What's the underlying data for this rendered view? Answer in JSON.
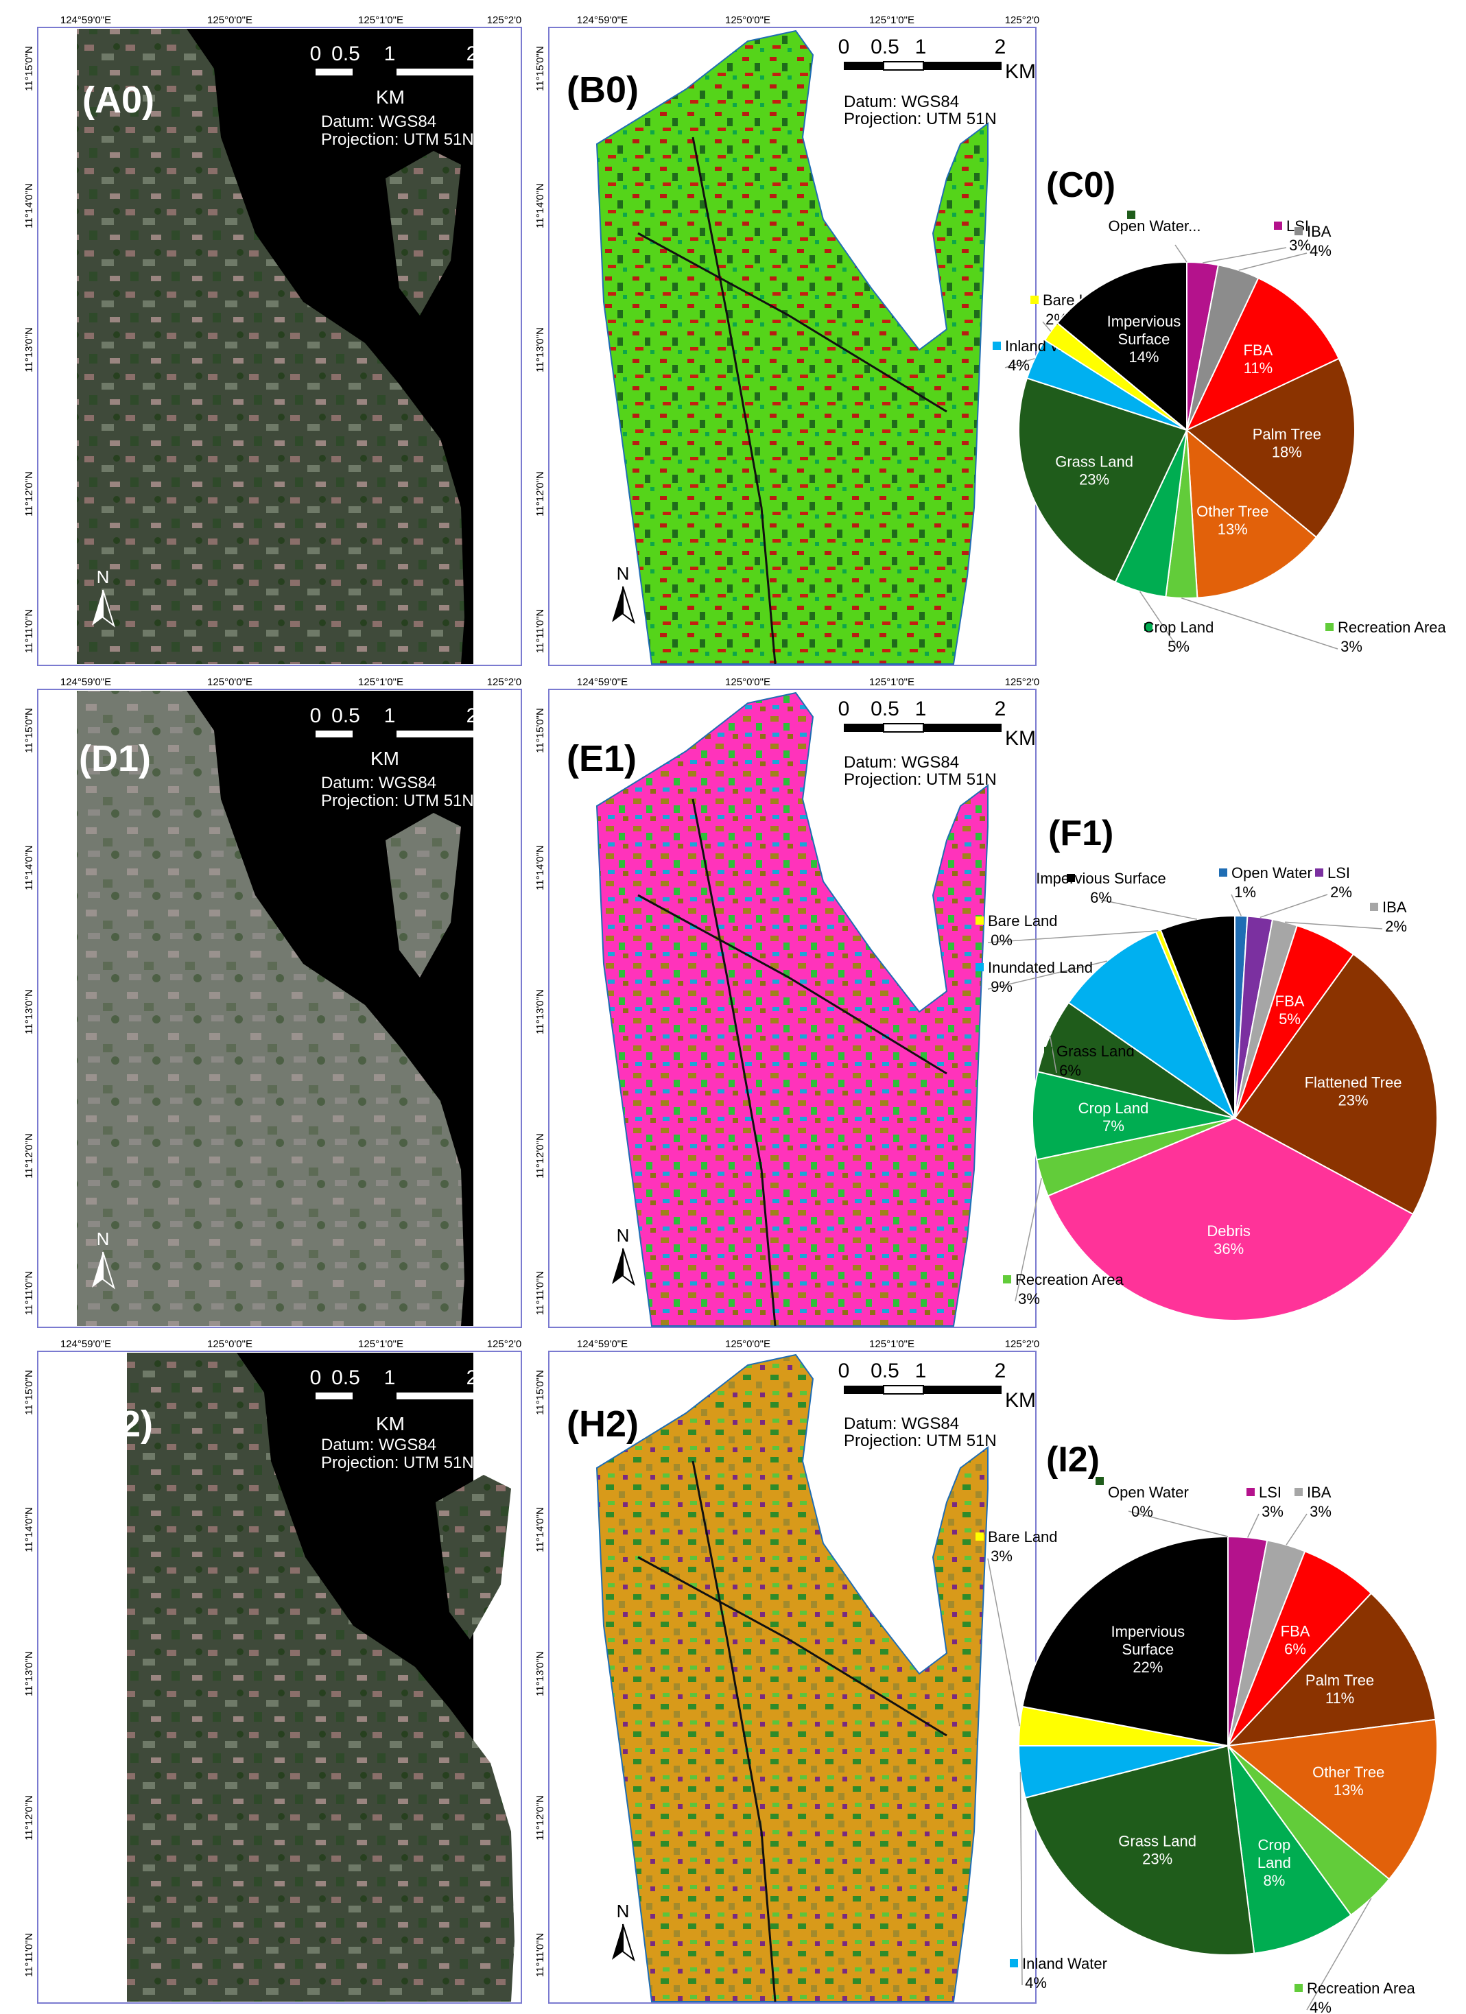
{
  "axes": {
    "lon_labels": [
      "124°59'0\"E",
      "125°0'0\"E",
      "125°1'0\"E",
      "125°2'0"
    ],
    "lat_labels": [
      "11°15'0\"N",
      "11°14'0\"N",
      "11°13'0\"N",
      "11°12'0\"N",
      "11°11'0\"N"
    ]
  },
  "map_info": {
    "scale_numbers": [
      "0",
      "0.5",
      "1",
      "2"
    ],
    "km": "KM",
    "datum": "Datum: WGS84",
    "projection": "Projection: UTM 51N",
    "north": "N"
  },
  "panels": {
    "A0": "(A0)",
    "B0": "(B0)",
    "C0": "(C0)",
    "D1": "(D1)",
    "E1": "(E1)",
    "F1": "(F1)",
    "G2": "(G2)",
    "H2": "(H2)",
    "I2": "(I2)"
  },
  "colors": {
    "lsi": "#b4128c",
    "iba": "#8c8c8c",
    "fba": "#ff0000",
    "palm": "#8b3300",
    "other_tree": "#e2610a",
    "recreation": "#62cc3a",
    "crop": "#00ad51",
    "grass": "#1f5c1b",
    "inland_water": "#00b0f0",
    "bare": "#ffff00",
    "impervious": "#000000",
    "open_water": "#1f6db4",
    "debris": "#ff3399",
    "flattened": "#8b3300",
    "inundated": "#00b0f0"
  },
  "chart_data": [
    {
      "type": "pie",
      "panel": "(C0)",
      "slices": [
        {
          "name": "LSI",
          "value": 3,
          "color": "#b4128c",
          "inside": false
        },
        {
          "name": "IBA",
          "value": 4,
          "color": "#8c8c8c",
          "inside": false
        },
        {
          "name": "FBA",
          "value": 11,
          "color": "#ff0000",
          "inside": true
        },
        {
          "name": "Palm Tree",
          "value": 18,
          "color": "#8b3300",
          "inside": true
        },
        {
          "name": "Other Tree",
          "value": 13,
          "color": "#e2610a",
          "inside": true
        },
        {
          "name": "Recreation Area",
          "value": 3,
          "color": "#62cc3a",
          "inside": false
        },
        {
          "name": "Crop Land",
          "value": 5,
          "color": "#00ad51",
          "inside": false
        },
        {
          "name": "Grass Land",
          "value": 23,
          "color": "#1f5c1b",
          "inside": true
        },
        {
          "name": "Inland Water",
          "value": 4,
          "color": "#00b0f0",
          "inside": false
        },
        {
          "name": "Bare Land",
          "value": 2,
          "color": "#ffff00",
          "inside": false
        },
        {
          "name": "Impervious Surface",
          "value": 14,
          "color": "#000000",
          "inside": true
        },
        {
          "name": "Open Water...",
          "value": 0,
          "color": "#1f5c1b",
          "inside": false
        }
      ],
      "labels": {
        "LSI": "3%",
        "IBA": "4%",
        "FBA": "11%",
        "Palm Tree": "18%",
        "Other Tree": "13%",
        "Recreation Area": "3%",
        "Crop Land": "5%",
        "Grass Land": "23%",
        "Inland Water": "4%",
        "Bare Land": "2%",
        "Impervious Surface": "14%",
        "Open Water...": ""
      }
    },
    {
      "type": "pie",
      "panel": "(F1)",
      "slices": [
        {
          "name": "Open Water",
          "value": 1,
          "color": "#1f6db4",
          "inside": false
        },
        {
          "name": "LSI",
          "value": 2,
          "color": "#7b30a0",
          "inside": false
        },
        {
          "name": "IBA",
          "value": 2,
          "color": "#a6a6a6",
          "inside": false
        },
        {
          "name": "FBA",
          "value": 5,
          "color": "#ff0000",
          "inside": true
        },
        {
          "name": "Flattened Tree",
          "value": 23,
          "color": "#8b3300",
          "inside": true
        },
        {
          "name": "Debris",
          "value": 36,
          "color": "#ff3399",
          "inside": true
        },
        {
          "name": "Recreation Area",
          "value": 3,
          "color": "#62cc3a",
          "inside": false
        },
        {
          "name": "Crop Land",
          "value": 7,
          "color": "#00ad51",
          "inside": true
        },
        {
          "name": "Grass Land",
          "value": 6,
          "color": "#1f5c1b",
          "inside": false
        },
        {
          "name": "Inundated Land",
          "value": 9,
          "color": "#00b0f0",
          "inside": false
        },
        {
          "name": "Bare Land",
          "value": 0.4,
          "color": "#ffff00",
          "inside": false
        },
        {
          "name": "Impervious Surface",
          "value": 6,
          "color": "#000000",
          "inside": false
        }
      ],
      "labels": {
        "Open Water": "1%",
        "LSI": "2%",
        "IBA": "2%",
        "FBA": "5%",
        "Flattened Tree": "23%",
        "Debris": "36%",
        "Recreation Area": "3%",
        "Crop Land": "7%",
        "Grass Land": "6%",
        "Inundated Land": "9%",
        "Bare Land": "0%",
        "Impervious Surface": "6%"
      }
    },
    {
      "type": "pie",
      "panel": "(I2)",
      "slices": [
        {
          "name": "Open Water",
          "value": 0,
          "color": "#1f5c1b",
          "inside": false
        },
        {
          "name": "LSI",
          "value": 3,
          "color": "#b4128c",
          "inside": false
        },
        {
          "name": "IBA",
          "value": 3,
          "color": "#a6a6a6",
          "inside": false
        },
        {
          "name": "FBA",
          "value": 6,
          "color": "#ff0000",
          "inside": true
        },
        {
          "name": "Palm Tree",
          "value": 11,
          "color": "#8b3300",
          "inside": true
        },
        {
          "name": "Other Tree",
          "value": 13,
          "color": "#e2610a",
          "inside": true
        },
        {
          "name": "Recreation Area",
          "value": 4,
          "color": "#62cc3a",
          "inside": false
        },
        {
          "name": "Crop Land",
          "value": 8,
          "color": "#00ad51",
          "inside": true
        },
        {
          "name": "Grass Land",
          "value": 23,
          "color": "#1f5c1b",
          "inside": true
        },
        {
          "name": "Inland Water",
          "value": 4,
          "color": "#00b0f0",
          "inside": false
        },
        {
          "name": "Bare Land",
          "value": 3,
          "color": "#ffff00",
          "inside": false
        },
        {
          "name": "Impervious Surface",
          "value": 22,
          "color": "#000000",
          "inside": true
        }
      ],
      "labels": {
        "Open Water": "0%",
        "LSI": "3%",
        "IBA": "3%",
        "FBA": "6%",
        "Palm Tree": "11%",
        "Other Tree": "13%",
        "Recreation Area": "4%",
        "Crop Land": "8%",
        "Grass Land": "23%",
        "Inland Water": "4%",
        "Bare Land": "3%",
        "Impervious Surface": "22%"
      }
    }
  ]
}
